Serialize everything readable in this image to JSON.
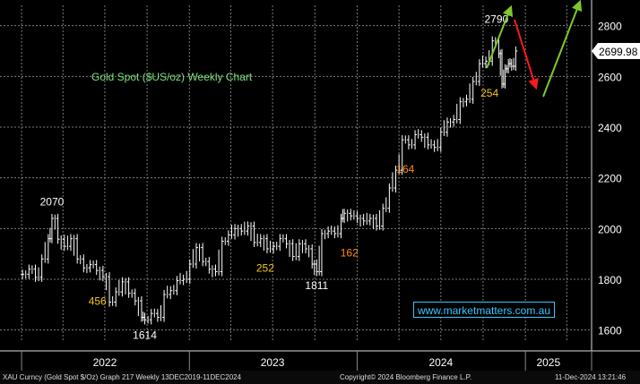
{
  "chart_data": {
    "type": "candlestick",
    "title": "Gold Spot ($US/oz) Weekly Chart",
    "y_ticks": [
      1600,
      1800,
      2000,
      2200,
      2400,
      2600,
      2800
    ],
    "ylim": [
      1560,
      2880
    ],
    "x_labels": [
      "2022",
      "2023",
      "2024",
      "2025"
    ],
    "last_price": "2699.98",
    "annotations": [
      {
        "text": "2070",
        "kind": "price",
        "x": "2022-03-08",
        "y": 2070
      },
      {
        "text": "1614",
        "kind": "price",
        "x": "2022-09-26",
        "y": 1614
      },
      {
        "text": "1811",
        "kind": "price",
        "x": "2023-10-05",
        "y": 1811
      },
      {
        "text": "2790",
        "kind": "price",
        "x": "2024-10-30",
        "y": 2790
      },
      {
        "text": "456",
        "kind": "move",
        "x": "2022-06-15",
        "y": 1700
      },
      {
        "text": "252",
        "kind": "move",
        "x": "2023-06-15",
        "y": 1830
      },
      {
        "text": "162",
        "kind": "move",
        "x": "2023-12-15",
        "y": 1890
      },
      {
        "text": "164",
        "kind": "move",
        "x": "2024-04-15",
        "y": 2220
      },
      {
        "text": "254",
        "kind": "move",
        "x": "2024-10-15",
        "y": 2520
      }
    ],
    "series": [
      {
        "values": [
          [
            "2022-01-03",
            1820
          ],
          [
            "2022-01-17",
            1840
          ],
          [
            "2022-01-31",
            1808
          ],
          [
            "2022-02-14",
            1880
          ],
          [
            "2022-02-28",
            1960
          ],
          [
            "2022-03-08",
            2040
          ],
          [
            "2022-03-21",
            1958
          ],
          [
            "2022-04-04",
            1930
          ],
          [
            "2022-04-18",
            1960
          ],
          [
            "2022-05-02",
            1880
          ],
          [
            "2022-05-16",
            1845
          ],
          [
            "2022-05-30",
            1858
          ],
          [
            "2022-06-13",
            1835
          ],
          [
            "2022-06-27",
            1810
          ],
          [
            "2022-07-11",
            1710
          ],
          [
            "2022-07-25",
            1750
          ],
          [
            "2022-08-08",
            1790
          ],
          [
            "2022-08-22",
            1745
          ],
          [
            "2022-09-05",
            1715
          ],
          [
            "2022-09-19",
            1650
          ],
          [
            "2022-09-26",
            1640
          ],
          [
            "2022-10-10",
            1665
          ],
          [
            "2022-10-24",
            1650
          ],
          [
            "2022-11-07",
            1740
          ],
          [
            "2022-11-21",
            1755
          ],
          [
            "2022-12-05",
            1795
          ],
          [
            "2022-12-19",
            1800
          ],
          [
            "2023-01-02",
            1860
          ],
          [
            "2023-01-16",
            1925
          ],
          [
            "2023-01-30",
            1870
          ],
          [
            "2023-02-13",
            1840
          ],
          [
            "2023-02-27",
            1830
          ],
          [
            "2023-03-13",
            1950
          ],
          [
            "2023-03-27",
            1975
          ],
          [
            "2023-04-10",
            2000
          ],
          [
            "2023-04-24",
            1990
          ],
          [
            "2023-05-08",
            2010
          ],
          [
            "2023-05-22",
            1945
          ],
          [
            "2023-06-05",
            1960
          ],
          [
            "2023-06-19",
            1920
          ],
          [
            "2023-07-03",
            1930
          ],
          [
            "2023-07-17",
            1960
          ],
          [
            "2023-07-31",
            1940
          ],
          [
            "2023-08-14",
            1890
          ],
          [
            "2023-08-28",
            1940
          ],
          [
            "2023-09-11",
            1920
          ],
          [
            "2023-09-25",
            1860
          ],
          [
            "2023-10-05",
            1830
          ],
          [
            "2023-10-16",
            1980
          ],
          [
            "2023-10-30",
            1990
          ],
          [
            "2023-11-13",
            1980
          ],
          [
            "2023-11-27",
            2040
          ],
          [
            "2023-12-04",
            2060
          ],
          [
            "2023-12-18",
            2050
          ],
          [
            "2024-01-01",
            2040
          ],
          [
            "2024-01-15",
            2030
          ],
          [
            "2024-01-29",
            2040
          ],
          [
            "2024-02-12",
            2010
          ],
          [
            "2024-02-26",
            2080
          ],
          [
            "2024-03-11",
            2160
          ],
          [
            "2024-03-25",
            2230
          ],
          [
            "2024-04-08",
            2350
          ],
          [
            "2024-04-22",
            2330
          ],
          [
            "2024-05-06",
            2370
          ],
          [
            "2024-05-20",
            2360
          ],
          [
            "2024-06-03",
            2330
          ],
          [
            "2024-06-17",
            2320
          ],
          [
            "2024-07-01",
            2380
          ],
          [
            "2024-07-15",
            2420
          ],
          [
            "2024-07-29",
            2430
          ],
          [
            "2024-08-12",
            2500
          ],
          [
            "2024-08-26",
            2510
          ],
          [
            "2024-09-09",
            2580
          ],
          [
            "2024-09-23",
            2650
          ],
          [
            "2024-10-07",
            2660
          ],
          [
            "2024-10-21",
            2740
          ],
          [
            "2024-11-04",
            2690
          ],
          [
            "2024-11-11",
            2570
          ],
          [
            "2024-11-18",
            2630
          ],
          [
            "2024-11-25",
            2650
          ],
          [
            "2024-12-02",
            2640
          ],
          [
            "2024-12-11",
            2700
          ]
        ]
      }
    ]
  },
  "watermark": "www.marketmatters.com.au",
  "footer": {
    "left": "XAU Curncy (Gold Spot  $/Oz) Graph 217  Weekly 13DEC2019-11DEC2024",
    "center": "Copyright© 2024 Bloomberg Finance L.P.",
    "right": "11-Dec-2024 13:21:46"
  },
  "colors": {
    "background": "#000000",
    "grid": "#7d7d7d",
    "title": "#7fe07f",
    "price_label": "#ffffff",
    "move_label": "#f5c518",
    "move_label_alt": "#ff8c1a",
    "up_arrow": "#7dc82a",
    "down_arrow": "#ff1a1a",
    "watermark": "#39c6ff"
  },
  "arrows": [
    {
      "direction": "up",
      "color": "up_arrow"
    },
    {
      "direction": "down",
      "color": "down_arrow"
    },
    {
      "direction": "up",
      "color": "up_arrow"
    }
  ]
}
